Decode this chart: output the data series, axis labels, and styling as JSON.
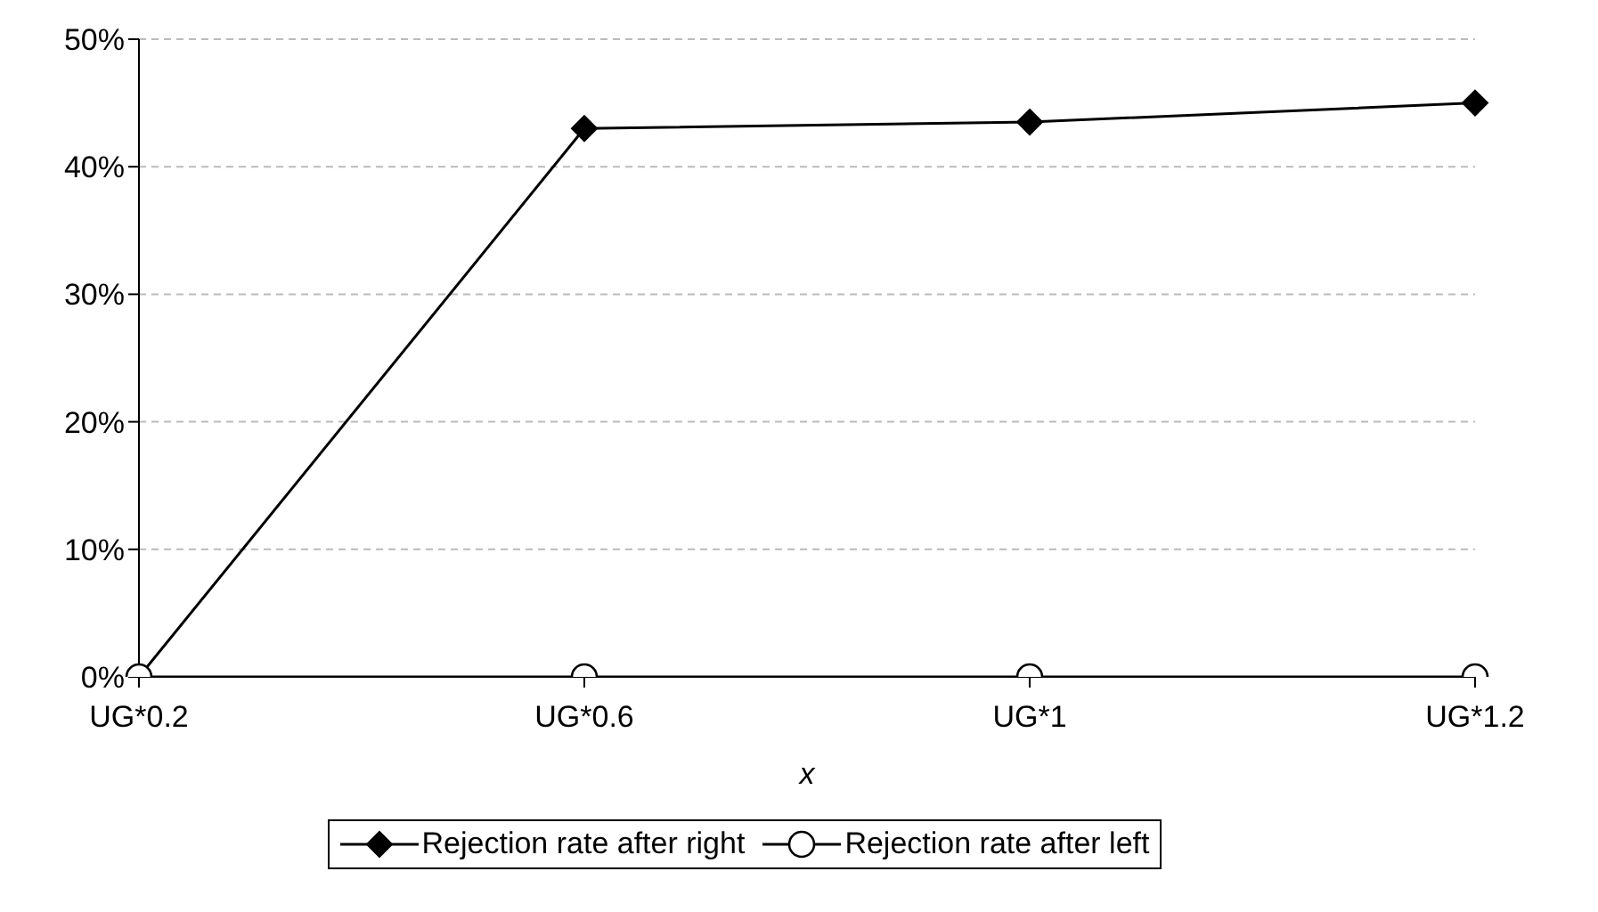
{
  "chart_data": {
    "type": "line",
    "xlabel": "x",
    "categories": [
      "UG*0.2",
      "UG*0.6",
      "UG*1",
      "UG*1.2"
    ],
    "series": [
      {
        "name": "Rejection rate after right",
        "color": "#000000",
        "marker": "diamond",
        "values": [
          0,
          43,
          43.5,
          45
        ]
      },
      {
        "name": "Rejection rate after left",
        "color": "#000000",
        "marker": "circle",
        "values": [
          0,
          0,
          0,
          0
        ]
      }
    ],
    "ylim": [
      0,
      50
    ],
    "yticks": [
      {
        "value": 0,
        "label": "0%"
      },
      {
        "value": 10,
        "label": "10%"
      },
      {
        "value": 20,
        "label": "20%"
      },
      {
        "value": 30,
        "label": "30%"
      },
      {
        "value": 40,
        "label": "40%"
      },
      {
        "value": 50,
        "label": "50%"
      }
    ],
    "grid": "y",
    "legend": "bottom",
    "line_style": "solid"
  }
}
